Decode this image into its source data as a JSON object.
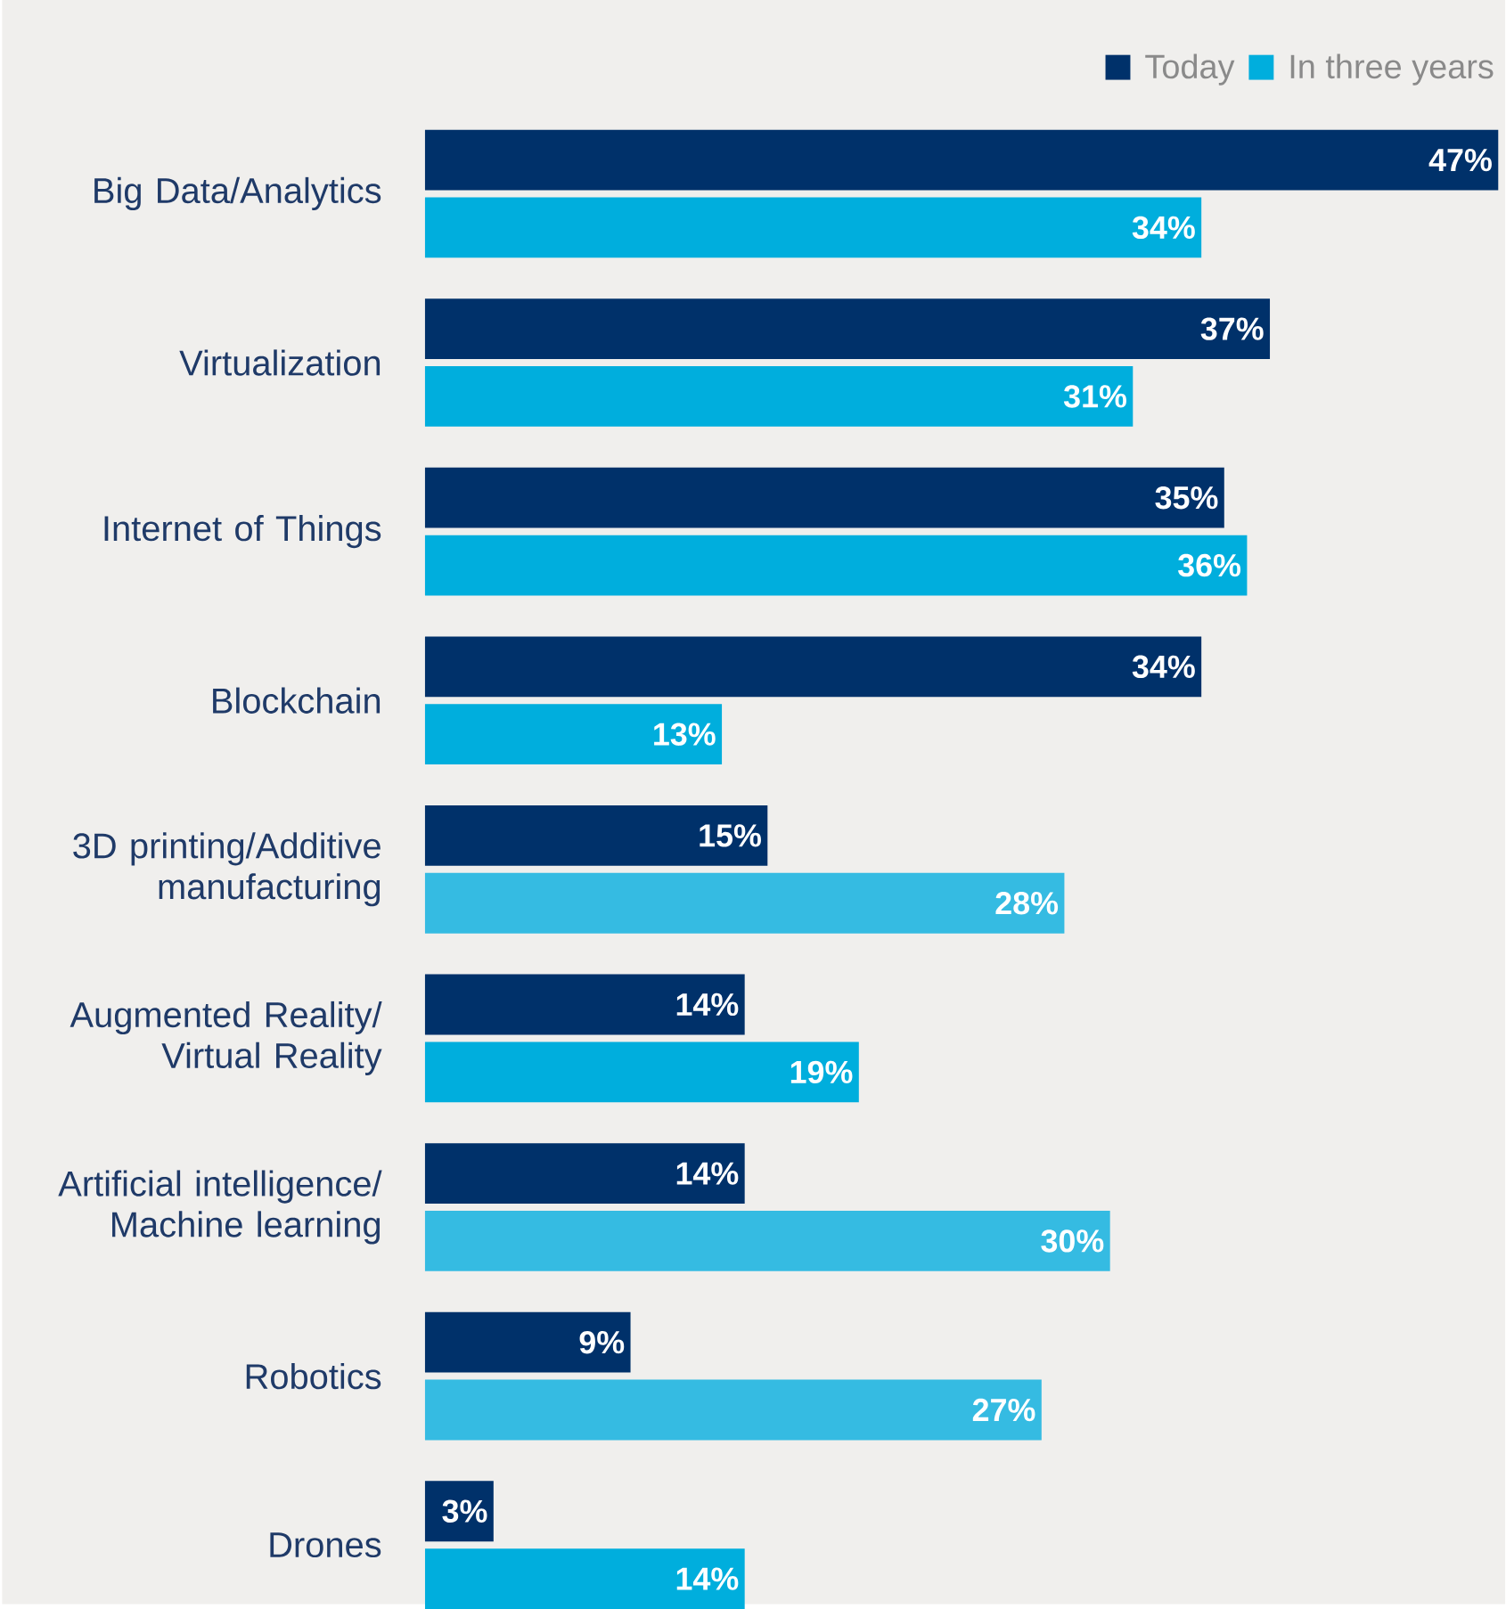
{
  "chart_data": {
    "type": "bar",
    "orientation": "horizontal",
    "legend": "top right",
    "data_labels": true,
    "categories": [
      "Big Data/Analytics",
      "Virtualization",
      "Internet of Things",
      "Blockchain",
      "3D printing/Additive manufacturing",
      "Augmented Reality/ Virtual Reality",
      "Artificial intelligence/ Machine learning",
      "Robotics",
      "Drones"
    ],
    "series": [
      {
        "name": "Today",
        "color": "#00316a",
        "values": [
          47,
          37,
          35,
          34,
          15,
          14,
          14,
          9,
          3
        ],
        "value_labels": [
          "47%",
          "37%",
          "35%",
          "34%",
          "15%",
          "14%",
          "14%",
          "9%",
          "3%"
        ]
      },
      {
        "name": "In three years",
        "color": "#00aedd",
        "colors": [
          "#00aedd",
          "#00aedd",
          "#00aedd",
          "#00aedd",
          "#35bbe2",
          "#00aedd",
          "#35bbe2",
          "#35bbe2",
          "#00aedd"
        ],
        "values": [
          34,
          31,
          36,
          13,
          28,
          19,
          30,
          27,
          14
        ],
        "value_labels": [
          "34%",
          "31%",
          "36%",
          "13%",
          "28%",
          "19%",
          "30%",
          "27%",
          "14%"
        ]
      }
    ]
  }
}
